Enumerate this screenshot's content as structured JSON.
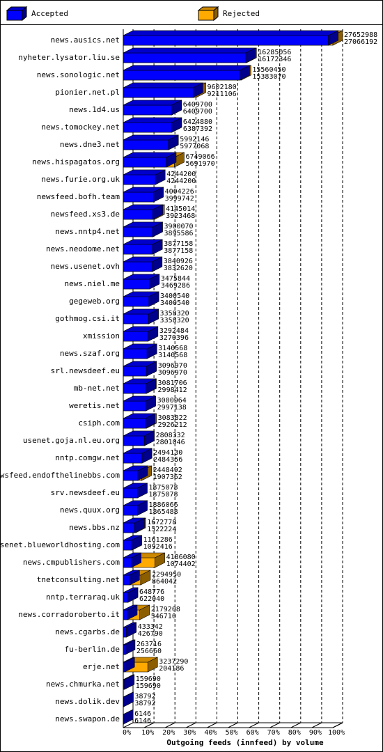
{
  "chart_data": {
    "type": "bar3d-horizontal",
    "title": "Outgoing feeds (innfeed) by volume",
    "categories": [
      "news.ausics.net",
      "nyheter.lysator.liu.se",
      "news.sonologic.net",
      "pionier.net.pl",
      "news.1d4.us",
      "news.tomockey.net",
      "news.dne3.net",
      "news.hispagatos.org",
      "news.furie.org.uk",
      "newsfeed.bofh.team",
      "newsfeed.xs3.de",
      "news.nntp4.net",
      "news.neodome.net",
      "news.usenet.ovh",
      "news.niel.me",
      "gegeweb.org",
      "gothmog.csi.it",
      "xmission",
      "news.szaf.org",
      "srl.newsdeef.eu",
      "mb-net.net",
      "weretis.net",
      "csiph.com",
      "usenet.goja.nl.eu.org",
      "nntp.comgw.net",
      "newsfeed.endofthelinebbs.com",
      "srv.newsdeef.eu",
      "news.quux.org",
      "news.bbs.nz",
      "usenet.blueworldhosting.com",
      "news.cmpublishers.com",
      "tnetconsulting.net",
      "nntp.terraraq.uk",
      "news.corradoroberto.it",
      "news.cgarbs.de",
      "fu-berlin.de",
      "erje.net",
      "news.chmurka.net",
      "news.dolik.dev",
      "news.swapon.de"
    ],
    "offered": [
      27652988,
      16285056,
      15560450,
      9602180,
      6409700,
      6424880,
      5992146,
      6749066,
      4244200,
      4004226,
      4145014,
      3900070,
      3877158,
      3840926,
      3475844,
      3400540,
      3358320,
      3292484,
      3140568,
      3096970,
      3081706,
      3000964,
      3083822,
      2808332,
      2494130,
      2448492,
      1875078,
      1886066,
      1672778,
      1161286,
      4186080,
      2294950,
      648776,
      2179208,
      433342,
      263716,
      3237290,
      159690,
      38792,
      6146
    ],
    "series": [
      {
        "name": "Accepted",
        "color": "#0000ff",
        "values": [
          27066192,
          16172346,
          15383070,
          9211106,
          6409700,
          6387392,
          5977068,
          5691970,
          4244200,
          3999742,
          3923468,
          3895586,
          3877158,
          3832620,
          3469286,
          3400540,
          3358320,
          3270396,
          3140568,
          3096970,
          2998412,
          2997138,
          2926212,
          2801046,
          2484356,
          1907362,
          1875078,
          1865488,
          1522224,
          1092416,
          1074402,
          864042,
          622040,
          546710,
          426790,
          256660,
          204186,
          159690,
          38792,
          6146
        ]
      },
      {
        "name": "Rejected",
        "color": "#ffaa00"
      }
    ],
    "xlim": [
      0,
      100
    ],
    "xticks": [
      {
        "value": 0,
        "label": "0%"
      },
      {
        "value": 10,
        "label": "10%"
      },
      {
        "value": 20,
        "label": "20%"
      },
      {
        "value": 30,
        "label": "30%"
      },
      {
        "value": 40,
        "label": "40%"
      },
      {
        "value": 50,
        "label": "50%"
      },
      {
        "value": 60,
        "label": "60%"
      },
      {
        "value": 70,
        "label": "70%"
      },
      {
        "value": 80,
        "label": "80%"
      },
      {
        "value": 90,
        "label": "90%"
      },
      {
        "value": 100,
        "label": "100%"
      }
    ],
    "grid": true
  }
}
